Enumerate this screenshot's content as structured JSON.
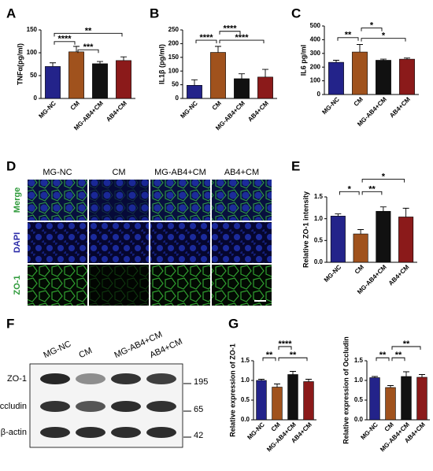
{
  "chart_data": [
    {
      "type": "bar",
      "y_label": "TNFα(pg/ml)",
      "categories": [
        "MG-NC",
        "CM",
        "MG-AB4+CM",
        "AB4+CM"
      ],
      "values": [
        70,
        102,
        76,
        83
      ],
      "errors": [
        8,
        12,
        5,
        8
      ],
      "colors": [
        "#23238a",
        "#a0521d",
        "#111111",
        "#8b1a1a"
      ],
      "ylim": [
        0,
        150
      ],
      "yticks": [
        0,
        50,
        100,
        150
      ],
      "annotations": [
        "****",
        "***",
        "**"
      ]
    },
    {
      "type": "bar",
      "y_label": "IL1β  (pg/ml)",
      "categories": [
        "MG-NC",
        "CM",
        "MG-AB4+CM",
        "AB4+CM"
      ],
      "values": [
        48,
        168,
        72,
        78
      ],
      "errors": [
        20,
        22,
        18,
        28
      ],
      "colors": [
        "#23238a",
        "#a0521d",
        "#111111",
        "#8b1a1a"
      ],
      "ylim": [
        0,
        250
      ],
      "yticks": [
        0,
        50,
        100,
        150,
        200,
        250
      ],
      "annotations": [
        "****",
        "****",
        "****"
      ]
    },
    {
      "type": "bar",
      "y_label": "IL6 pg/ml",
      "categories": [
        "MG-NC",
        "CM",
        "MG-AB4+CM",
        "AB4+CM"
      ],
      "values": [
        235,
        310,
        250,
        258
      ],
      "errors": [
        15,
        55,
        8,
        8
      ],
      "colors": [
        "#23238a",
        "#a0521d",
        "#111111",
        "#8b1a1a"
      ],
      "ylim": [
        0,
        500
      ],
      "yticks": [
        0,
        100,
        200,
        300,
        400,
        500
      ],
      "annotations": [
        "**",
        "*",
        "*"
      ]
    },
    {
      "type": "bar",
      "y_label": "Relative ZO-1 intensity",
      "categories": [
        "MG-NC",
        "CM",
        "MG-AB4+CM",
        "AB4+CM"
      ],
      "values": [
        1.06,
        0.65,
        1.17,
        1.04
      ],
      "errors": [
        0.05,
        0.1,
        0.1,
        0.2
      ],
      "colors": [
        "#23238a",
        "#a0521d",
        "#111111",
        "#8b1a1a"
      ],
      "ylim": [
        0,
        1.5
      ],
      "yticks": [
        {
          "value": 0,
          "label": "0.0"
        },
        0.5,
        {
          "value": 1,
          "label": "1.0"
        },
        1.5
      ],
      "annotations": [
        "*",
        "**",
        "*"
      ]
    },
    {
      "type": "bar",
      "y_label": "Relative expression of ZO-1",
      "categories": [
        "MG-NC",
        "CM",
        "MG-AB4+CM",
        "AB4+CM"
      ],
      "values": [
        1.0,
        0.83,
        1.15,
        0.97
      ],
      "errors": [
        0.03,
        0.08,
        0.08,
        0.06
      ],
      "colors": [
        "#23238a",
        "#a0521d",
        "#111111",
        "#8b1a1a"
      ],
      "ylim": [
        0,
        1.5
      ],
      "yticks": [
        {
          "value": 0,
          "label": "0.0"
        },
        0.5,
        {
          "value": 1,
          "label": "1.0"
        },
        1.5
      ],
      "annotations": [
        "**",
        "****",
        "**"
      ]
    },
    {
      "type": "bar",
      "y_label": "Relative expression of Occludin",
      "categories": [
        "MG-NC",
        "CM",
        "MG-AB4+CM",
        "AB4+CM"
      ],
      "values": [
        1.07,
        0.82,
        1.1,
        1.08
      ],
      "errors": [
        0.03,
        0.05,
        0.12,
        0.07
      ],
      "colors": [
        "#23238a",
        "#a0521d",
        "#111111",
        "#8b1a1a"
      ],
      "ylim": [
        0,
        1.5
      ],
      "yticks": [
        {
          "value": 0,
          "label": "0.0"
        },
        0.5,
        {
          "value": 1,
          "label": "1.0"
        },
        1.5
      ],
      "annotations": [
        "**",
        "**",
        "**"
      ]
    }
  ],
  "panel_labels": [
    "A",
    "B",
    "C",
    "D",
    "E",
    "F",
    "G"
  ],
  "microscopy": {
    "columns": [
      "MG-NC",
      "CM",
      "MG-AB4+CM",
      "AB4+CM"
    ],
    "rows": [
      "Merge",
      "DAPI",
      "ZO-1"
    ]
  },
  "blot": {
    "lanes": [
      "MG-NC",
      "CM",
      "MG-AB4+CM",
      "AB4+CM"
    ],
    "rows": [
      {
        "name": "ZO-1",
        "kda": "195"
      },
      {
        "name": "Occludin",
        "kda": "65"
      },
      {
        "name": "β-actin",
        "kda": "42"
      }
    ]
  }
}
